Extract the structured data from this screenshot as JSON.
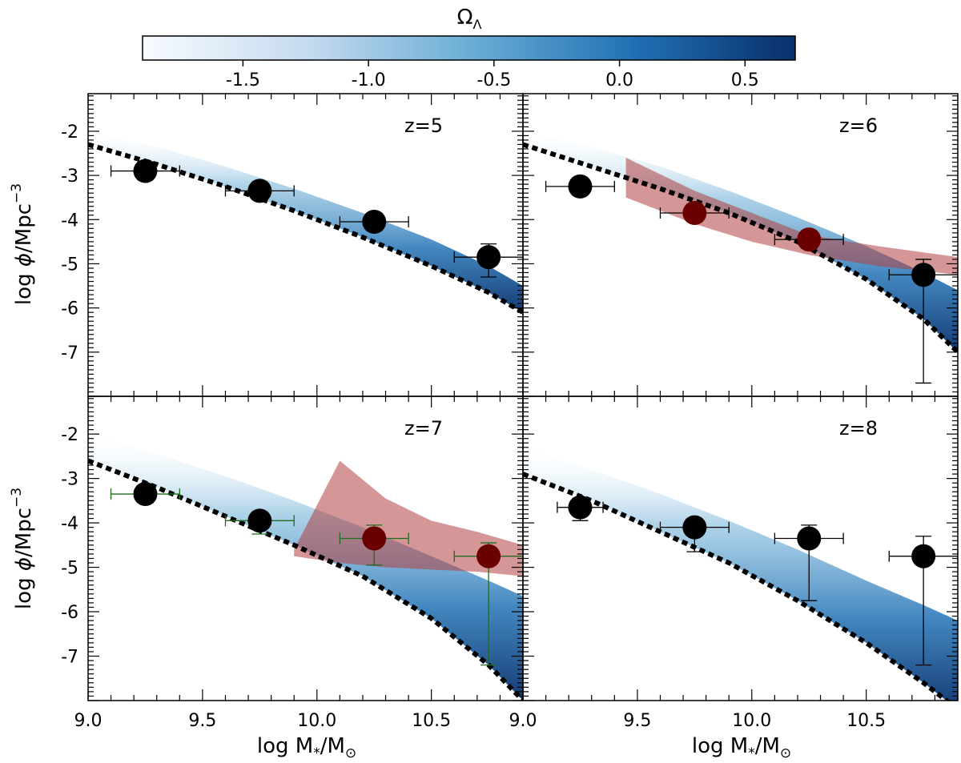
{
  "chart_data": {
    "type": "scatter",
    "colorbar": {
      "title": "Ω",
      "title_sub": "Λ",
      "range": [
        -1.9,
        0.7
      ],
      "ticks": [
        "-1.5",
        "-1.0",
        "-0.5",
        "0.0",
        "0.5"
      ],
      "tick_values": [
        -1.5,
        -1.0,
        -0.5,
        0.0,
        0.5
      ],
      "colors": [
        "#f7fbff",
        "#c6dbef",
        "#6baed6",
        "#2171b5",
        "#08306b"
      ]
    },
    "xlabel": {
      "pre": "log M",
      "sub1": "*",
      "mid": "/M",
      "sub2": "⊙"
    },
    "ylabel": {
      "pre": "log ",
      "phi": "ϕ",
      "mid": "/Mpc",
      "sup": "−3"
    },
    "xlim": [
      9.0,
      10.9
    ],
    "ylim": [
      -8.0,
      -1.15
    ],
    "x_ticks": [
      9.0,
      9.5,
      10.0,
      10.5
    ],
    "x_tick_labels": [
      "9.0",
      "9.5",
      "10.0",
      "10.5"
    ],
    "y_ticks": [
      -2,
      -3,
      -4,
      -5,
      -6,
      -7
    ],
    "y_tick_labels": [
      "-2",
      "-3",
      "-4",
      "-5",
      "-6",
      "-7"
    ],
    "panels": [
      {
        "label": "z=5",
        "model_line": {
          "x": [
            9.0,
            9.3,
            9.6,
            9.9,
            10.2,
            10.5,
            10.75,
            10.9
          ],
          "y": [
            -2.3,
            -2.75,
            -3.25,
            -3.8,
            -4.4,
            -5.05,
            -5.65,
            -6.1
          ]
        },
        "model_band_top": [
          -2.0,
          -2.35,
          -2.8,
          -3.3,
          -3.85,
          -4.45,
          -5.05,
          -5.5
        ],
        "points": [
          {
            "x": 9.25,
            "y": -2.9,
            "xerr": 0.15,
            "yerr_lo": 0.2,
            "yerr_hi": 0.2
          },
          {
            "x": 9.75,
            "y": -3.35,
            "xerr": 0.15,
            "yerr_lo": 0.2,
            "yerr_hi": 0.2
          },
          {
            "x": 10.25,
            "y": -4.05,
            "xerr": 0.15,
            "yerr_lo": 0.2,
            "yerr_hi": 0.2
          },
          {
            "x": 10.75,
            "y": -4.85,
            "xerr": 0.15,
            "yerr_lo": 0.45,
            "yerr_hi": 0.3
          }
        ]
      },
      {
        "label": "z=6",
        "model_line": {
          "x": [
            9.0,
            9.3,
            9.6,
            9.9,
            10.2,
            10.5,
            10.75,
            10.9
          ],
          "y": [
            -2.3,
            -2.8,
            -3.3,
            -3.85,
            -4.5,
            -5.35,
            -6.25,
            -7.0
          ]
        },
        "model_band_top": [
          -2.0,
          -2.35,
          -2.8,
          -3.35,
          -3.95,
          -4.6,
          -5.2,
          -5.6
        ],
        "shade": {
          "x": [
            9.45,
            9.75,
            10.0,
            10.25,
            10.55,
            10.9
          ],
          "upper": [
            -2.6,
            -3.35,
            -3.85,
            -4.35,
            -4.6,
            -4.85
          ],
          "lower": [
            -3.5,
            -4.1,
            -4.5,
            -4.8,
            -5.05,
            -5.25
          ]
        },
        "points": [
          {
            "x": 9.25,
            "y": -3.25,
            "xerr": 0.15,
            "yerr_lo": 0.2,
            "yerr_hi": 0.2,
            "color": "#000000"
          },
          {
            "x": 9.75,
            "y": -3.85,
            "xerr": 0.15,
            "yerr_lo": 0.2,
            "yerr_hi": 0.2,
            "color": "#6b0000"
          },
          {
            "x": 10.25,
            "y": -4.45,
            "xerr": 0.15,
            "yerr_lo": 0.2,
            "yerr_hi": 0.2,
            "color": "#6b0000"
          },
          {
            "x": 10.75,
            "y": -5.25,
            "xerr": 0.15,
            "yerr_lo": 2.45,
            "yerr_hi": 0.35,
            "color": "#000000"
          }
        ]
      },
      {
        "label": "z=7",
        "model_line": {
          "x": [
            9.0,
            9.3,
            9.6,
            9.9,
            10.2,
            10.5,
            10.75,
            10.9
          ],
          "y": [
            -2.6,
            -3.2,
            -3.85,
            -4.5,
            -5.2,
            -6.15,
            -7.2,
            -8.0
          ]
        },
        "model_band_top": [
          -2.0,
          -2.45,
          -2.95,
          -3.5,
          -4.1,
          -4.75,
          -5.3,
          -5.65
        ],
        "shade": {
          "x": [
            9.9,
            10.1,
            10.3,
            10.5,
            10.7,
            10.9
          ],
          "upper": [
            -4.6,
            -2.6,
            -3.45,
            -3.95,
            -4.2,
            -4.5
          ],
          "lower": [
            -4.75,
            -4.9,
            -5.0,
            -5.05,
            -5.1,
            -5.2
          ]
        },
        "points": [
          {
            "x": 9.25,
            "y": -3.35,
            "xerr": 0.15,
            "yerr_lo": 0.2,
            "yerr_hi": 0.2,
            "color": "#000000",
            "bar_color": "#1f6b1f"
          },
          {
            "x": 9.75,
            "y": -3.95,
            "xerr": 0.15,
            "yerr_lo": 0.3,
            "yerr_hi": 0.2,
            "color": "#000000",
            "bar_color": "#1f6b1f"
          },
          {
            "x": 10.25,
            "y": -4.35,
            "xerr": 0.15,
            "yerr_lo": 0.6,
            "yerr_hi": 0.3,
            "color": "#6b0000",
            "bar_color": "#1f6b1f"
          },
          {
            "x": 10.75,
            "y": -4.75,
            "xerr": 0.15,
            "yerr_lo": 2.45,
            "yerr_hi": 0.3,
            "color": "#6b0000",
            "bar_color": "#1f6b1f"
          }
        ]
      },
      {
        "label": "z=8",
        "model_line": {
          "x": [
            9.0,
            9.3,
            9.6,
            9.9,
            10.2,
            10.5,
            10.75,
            10.9
          ],
          "y": [
            -2.9,
            -3.5,
            -4.2,
            -4.9,
            -5.75,
            -6.7,
            -7.6,
            -8.2
          ]
        },
        "model_band_top": [
          -2.3,
          -2.8,
          -3.35,
          -3.95,
          -4.6,
          -5.3,
          -5.85,
          -6.2
        ],
        "points": [
          {
            "x": 9.25,
            "y": -3.65,
            "xerr": 0.1,
            "yerr_lo": 0.3,
            "yerr_hi": 0.2,
            "color": "#000000"
          },
          {
            "x": 9.75,
            "y": -4.1,
            "xerr": 0.15,
            "yerr_lo": 0.55,
            "yerr_hi": 0.2,
            "color": "#000000"
          },
          {
            "x": 10.25,
            "y": -4.35,
            "xerr": 0.15,
            "yerr_lo": 1.4,
            "yerr_hi": 0.3,
            "color": "#000000"
          },
          {
            "x": 10.75,
            "y": -4.75,
            "xerr": 0.15,
            "yerr_lo": 2.45,
            "yerr_hi": 0.45,
            "color": "#000000"
          }
        ]
      }
    ]
  }
}
